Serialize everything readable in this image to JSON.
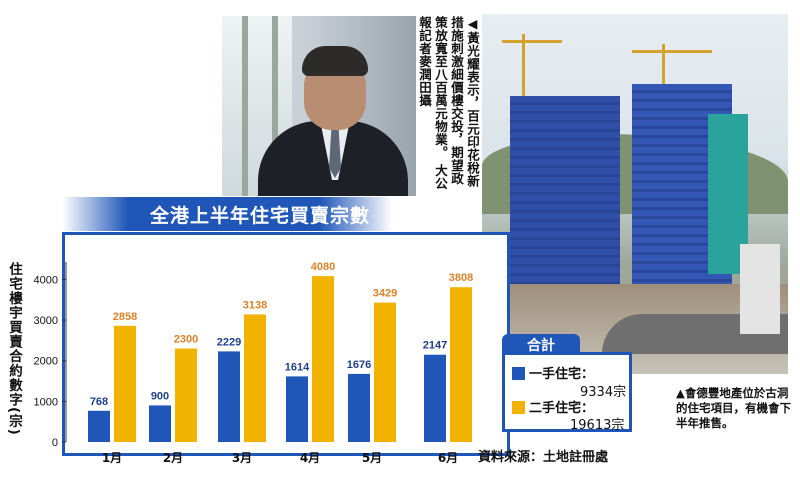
{
  "captions": {
    "photo1_main": "◀黃光耀表示，百元印花稅新措施刺激細價樓交投，期望政策放寬至八百萬元物業。",
    "photo1_credit": "大公報記者麥潤田攝",
    "photo2": "▲會德豐地產位於古洞的住宅項目，有機會下半年推售。"
  },
  "colors": {
    "primary_blue": "#1f56b8",
    "first_hand": "#1f56b8",
    "second_hand": "#f2b300",
    "second_hand_label": "#d9822b"
  },
  "legend": {
    "title": "合計",
    "first_label": "一手住宅：",
    "first_value": "9334宗",
    "second_label": "二手住宅：",
    "second_value": "19613宗"
  },
  "source": "資料來源：土地註冊處",
  "chart_data": {
    "type": "bar",
    "title": "全港上半年住宅買賣宗數",
    "ylabel": "住宅樓宇買賣合約數字(宗)",
    "xlabel": "",
    "categories": [
      "1月",
      "2月",
      "3月",
      "4月",
      "5月",
      "6月"
    ],
    "ylim": [
      0,
      4600
    ],
    "yticks": [
      0,
      1000,
      2000,
      3000,
      4000
    ],
    "grid": false,
    "series": [
      {
        "name": "一手住宅",
        "color": "#1f56b8",
        "label_color": "#1f3f8a",
        "values": [
          768,
          900,
          2229,
          1614,
          1676,
          2147
        ]
      },
      {
        "name": "二手住宅",
        "color": "#f2b300",
        "label_color": "#d9822b",
        "values": [
          2858,
          2300,
          3138,
          4080,
          3429,
          3808
        ]
      }
    ]
  }
}
